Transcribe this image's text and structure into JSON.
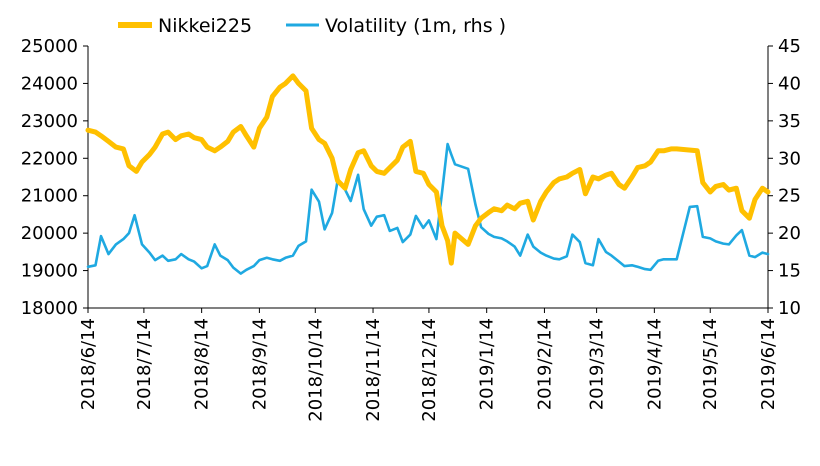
{
  "chart_data": {
    "type": "line",
    "x_ticks": [
      "2018/6/14",
      "2018/7/14",
      "2018/8/14",
      "2018/9/14",
      "2018/10/14",
      "2018/11/14",
      "2018/12/14",
      "2019/1/14",
      "2019/2/14",
      "2019/3/14",
      "2019/4/14",
      "2019/5/14",
      "2019/6/14"
    ],
    "y_left": {
      "ticks": [
        "18000",
        "19000",
        "20000",
        "21000",
        "22000",
        "23000",
        "24000",
        "25000"
      ],
      "range": [
        18000,
        25000
      ]
    },
    "y_right": {
      "ticks": [
        "10",
        "15",
        "20",
        "25",
        "30",
        "35",
        "40",
        "45"
      ],
      "range": [
        10,
        45
      ]
    },
    "legend_position": "top",
    "grid": false,
    "series": [
      {
        "name": "Nikkei225",
        "axis": "left",
        "color": "#ffc000",
        "points": [
          [
            "2018-06-14",
            22750
          ],
          [
            "2018-06-18",
            22700
          ],
          [
            "2018-06-21",
            22600
          ],
          [
            "2018-06-25",
            22450
          ],
          [
            "2018-06-29",
            22300
          ],
          [
            "2018-07-03",
            22250
          ],
          [
            "2018-07-06",
            21800
          ],
          [
            "2018-07-10",
            21650
          ],
          [
            "2018-07-13",
            21900
          ],
          [
            "2018-07-17",
            22100
          ],
          [
            "2018-07-20",
            22300
          ],
          [
            "2018-07-24",
            22650
          ],
          [
            "2018-07-27",
            22700
          ],
          [
            "2018-07-31",
            22500
          ],
          [
            "2018-08-03",
            22600
          ],
          [
            "2018-08-07",
            22650
          ],
          [
            "2018-08-10",
            22550
          ],
          [
            "2018-08-14",
            22500
          ],
          [
            "2018-08-17",
            22300
          ],
          [
            "2018-08-21",
            22200
          ],
          [
            "2018-08-24",
            22300
          ],
          [
            "2018-08-28",
            22450
          ],
          [
            "2018-08-31",
            22700
          ],
          [
            "2018-09-04",
            22850
          ],
          [
            "2018-09-07",
            22600
          ],
          [
            "2018-09-11",
            22300
          ],
          [
            "2018-09-14",
            22800
          ],
          [
            "2018-09-18",
            23100
          ],
          [
            "2018-09-21",
            23650
          ],
          [
            "2018-09-25",
            23900
          ],
          [
            "2018-09-28",
            24000
          ],
          [
            "2018-10-02",
            24200
          ],
          [
            "2018-10-05",
            24000
          ],
          [
            "2018-10-09",
            23800
          ],
          [
            "2018-10-12",
            22800
          ],
          [
            "2018-10-16",
            22500
          ],
          [
            "2018-10-19",
            22400
          ],
          [
            "2018-10-23",
            22000
          ],
          [
            "2018-10-26",
            21400
          ],
          [
            "2018-10-30",
            21200
          ],
          [
            "2018-11-02",
            21700
          ],
          [
            "2018-11-06",
            22150
          ],
          [
            "2018-11-09",
            22200
          ],
          [
            "2018-11-13",
            21800
          ],
          [
            "2018-11-16",
            21650
          ],
          [
            "2018-11-20",
            21600
          ],
          [
            "2018-11-23",
            21750
          ],
          [
            "2018-11-27",
            21950
          ],
          [
            "2018-11-30",
            22300
          ],
          [
            "2018-12-04",
            22450
          ],
          [
            "2018-12-07",
            21650
          ],
          [
            "2018-12-11",
            21600
          ],
          [
            "2018-12-14",
            21300
          ],
          [
            "2018-12-18",
            21100
          ],
          [
            "2018-12-21",
            20200
          ],
          [
            "2018-12-24",
            19800
          ],
          [
            "2018-12-26",
            19200
          ],
          [
            "2018-12-28",
            20000
          ],
          [
            "2019-01-04",
            19700
          ],
          [
            "2019-01-08",
            20200
          ],
          [
            "2019-01-11",
            20400
          ],
          [
            "2019-01-15",
            20550
          ],
          [
            "2019-01-18",
            20650
          ],
          [
            "2019-01-22",
            20600
          ],
          [
            "2019-01-25",
            20750
          ],
          [
            "2019-01-29",
            20650
          ],
          [
            "2019-02-01",
            20800
          ],
          [
            "2019-02-05",
            20850
          ],
          [
            "2019-02-08",
            20350
          ],
          [
            "2019-02-12",
            20850
          ],
          [
            "2019-02-15",
            21100
          ],
          [
            "2019-02-19",
            21350
          ],
          [
            "2019-02-22",
            21450
          ],
          [
            "2019-02-26",
            21500
          ],
          [
            "2019-03-01",
            21600
          ],
          [
            "2019-03-05",
            21700
          ],
          [
            "2019-03-08",
            21050
          ],
          [
            "2019-03-12",
            21500
          ],
          [
            "2019-03-15",
            21450
          ],
          [
            "2019-03-19",
            21550
          ],
          [
            "2019-03-22",
            21600
          ],
          [
            "2019-03-26",
            21300
          ],
          [
            "2019-03-29",
            21200
          ],
          [
            "2019-04-02",
            21500
          ],
          [
            "2019-04-05",
            21750
          ],
          [
            "2019-04-09",
            21800
          ],
          [
            "2019-04-12",
            21900
          ],
          [
            "2019-04-16",
            22200
          ],
          [
            "2019-04-19",
            22200
          ],
          [
            "2019-04-23",
            22250
          ],
          [
            "2019-04-26",
            22250
          ],
          [
            "2019-05-07",
            22200
          ],
          [
            "2019-05-10",
            21350
          ],
          [
            "2019-05-14",
            21100
          ],
          [
            "2019-05-17",
            21250
          ],
          [
            "2019-05-21",
            21300
          ],
          [
            "2019-05-24",
            21150
          ],
          [
            "2019-05-28",
            21200
          ],
          [
            "2019-05-31",
            20600
          ],
          [
            "2019-06-04",
            20400
          ],
          [
            "2019-06-07",
            20900
          ],
          [
            "2019-06-11",
            21200
          ],
          [
            "2019-06-14",
            21100
          ]
        ]
      },
      {
        "name": "Volatility (1m, rhs )",
        "axis": "right",
        "color": "#1fa9e1",
        "points": [
          [
            "2018-06-14",
            15.5
          ],
          [
            "2018-06-18",
            15.7
          ],
          [
            "2018-06-21",
            19.6
          ],
          [
            "2018-06-25",
            17.2
          ],
          [
            "2018-06-29",
            18.5
          ],
          [
            "2018-07-03",
            19.2
          ],
          [
            "2018-07-06",
            20.0
          ],
          [
            "2018-07-09",
            22.4
          ],
          [
            "2018-07-13",
            18.5
          ],
          [
            "2018-07-17",
            17.4
          ],
          [
            "2018-07-20",
            16.4
          ],
          [
            "2018-07-24",
            17.0
          ],
          [
            "2018-07-27",
            16.3
          ],
          [
            "2018-07-31",
            16.5
          ],
          [
            "2018-08-03",
            17.2
          ],
          [
            "2018-08-07",
            16.5
          ],
          [
            "2018-08-10",
            16.2
          ],
          [
            "2018-08-14",
            15.3
          ],
          [
            "2018-08-17",
            15.6
          ],
          [
            "2018-08-21",
            18.5
          ],
          [
            "2018-08-24",
            17.0
          ],
          [
            "2018-08-28",
            16.4
          ],
          [
            "2018-08-31",
            15.4
          ],
          [
            "2018-09-04",
            14.6
          ],
          [
            "2018-09-07",
            15.1
          ],
          [
            "2018-09-11",
            15.6
          ],
          [
            "2018-09-14",
            16.4
          ],
          [
            "2018-09-18",
            16.7
          ],
          [
            "2018-09-21",
            16.5
          ],
          [
            "2018-09-25",
            16.3
          ],
          [
            "2018-09-28",
            16.7
          ],
          [
            "2018-10-02",
            17.0
          ],
          [
            "2018-10-05",
            18.3
          ],
          [
            "2018-10-09",
            18.9
          ],
          [
            "2018-10-12",
            25.8
          ],
          [
            "2018-10-16",
            24.2
          ],
          [
            "2018-10-19",
            20.5
          ],
          [
            "2018-10-23",
            22.7
          ],
          [
            "2018-10-26",
            27.0
          ],
          [
            "2018-10-30",
            25.8
          ],
          [
            "2018-11-02",
            24.3
          ],
          [
            "2018-11-06",
            27.8
          ],
          [
            "2018-11-09",
            23.2
          ],
          [
            "2018-11-13",
            21.0
          ],
          [
            "2018-11-16",
            22.2
          ],
          [
            "2018-11-20",
            22.4
          ],
          [
            "2018-11-23",
            20.3
          ],
          [
            "2018-11-27",
            20.7
          ],
          [
            "2018-11-30",
            18.8
          ],
          [
            "2018-12-04",
            19.8
          ],
          [
            "2018-12-07",
            22.3
          ],
          [
            "2018-12-11",
            20.7
          ],
          [
            "2018-12-14",
            21.7
          ],
          [
            "2018-12-18",
            19.2
          ],
          [
            "2018-12-21",
            25.4
          ],
          [
            "2018-12-24",
            31.9
          ],
          [
            "2018-12-26",
            30.5
          ],
          [
            "2018-12-28",
            29.2
          ],
          [
            "2019-01-04",
            28.6
          ],
          [
            "2019-01-08",
            23.8
          ],
          [
            "2019-01-11",
            20.8
          ],
          [
            "2019-01-15",
            19.9
          ],
          [
            "2019-01-18",
            19.5
          ],
          [
            "2019-01-22",
            19.3
          ],
          [
            "2019-01-25",
            18.9
          ],
          [
            "2019-01-29",
            18.2
          ],
          [
            "2019-02-01",
            17.0
          ],
          [
            "2019-02-05",
            19.8
          ],
          [
            "2019-02-08",
            18.2
          ],
          [
            "2019-02-12",
            17.4
          ],
          [
            "2019-02-15",
            17.0
          ],
          [
            "2019-02-19",
            16.6
          ],
          [
            "2019-02-22",
            16.5
          ],
          [
            "2019-02-26",
            16.9
          ],
          [
            "2019-03-01",
            19.8
          ],
          [
            "2019-03-05",
            18.8
          ],
          [
            "2019-03-08",
            16.0
          ],
          [
            "2019-03-12",
            15.7
          ],
          [
            "2019-03-15",
            19.2
          ],
          [
            "2019-03-19",
            17.5
          ],
          [
            "2019-03-22",
            17.0
          ],
          [
            "2019-03-26",
            16.2
          ],
          [
            "2019-03-29",
            15.6
          ],
          [
            "2019-04-02",
            15.7
          ],
          [
            "2019-04-05",
            15.5
          ],
          [
            "2019-04-09",
            15.2
          ],
          [
            "2019-04-12",
            15.1
          ],
          [
            "2019-04-16",
            16.3
          ],
          [
            "2019-04-19",
            16.5
          ],
          [
            "2019-04-23",
            16.5
          ],
          [
            "2019-04-26",
            16.5
          ],
          [
            "2019-05-03",
            23.5
          ],
          [
            "2019-05-07",
            23.6
          ],
          [
            "2019-05-10",
            19.5
          ],
          [
            "2019-05-14",
            19.3
          ],
          [
            "2019-05-17",
            18.9
          ],
          [
            "2019-05-21",
            18.6
          ],
          [
            "2019-05-24",
            18.5
          ],
          [
            "2019-05-28",
            19.7
          ],
          [
            "2019-05-31",
            20.4
          ],
          [
            "2019-06-04",
            17.0
          ],
          [
            "2019-06-07",
            16.8
          ],
          [
            "2019-06-11",
            17.4
          ],
          [
            "2019-06-14",
            17.2
          ]
        ]
      }
    ]
  }
}
